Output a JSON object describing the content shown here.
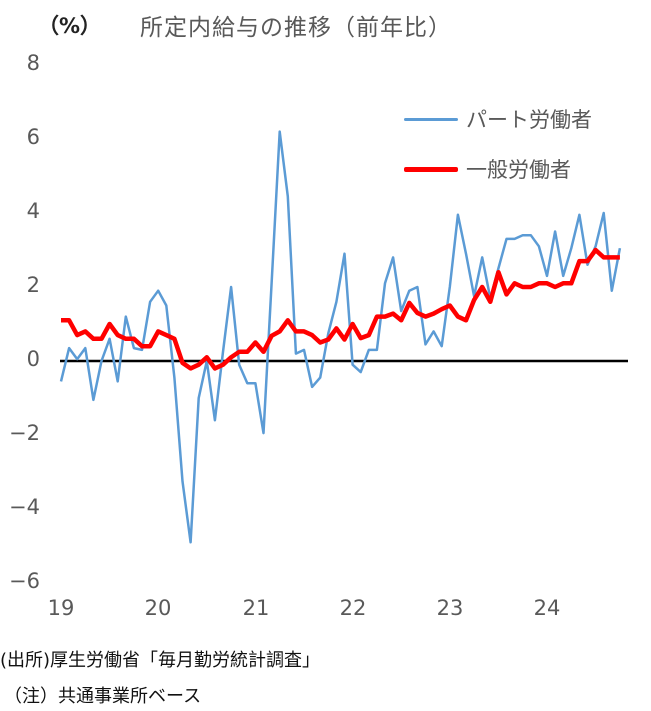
{
  "header": {
    "unit": "（%）",
    "title": "所定内給与の推移（前年比）"
  },
  "legend": {
    "items": [
      {
        "label": "パート労働者",
        "color": "#5b9bd5"
      },
      {
        "label": "一般労働者",
        "color": "#ff0000"
      }
    ]
  },
  "axes": {
    "y_ticks": [
      "8",
      "6",
      "4",
      "2",
      "0",
      "−2",
      "−4",
      "−6"
    ],
    "x_ticks": [
      "19",
      "20",
      "21",
      "22",
      "23",
      "24"
    ]
  },
  "footer": {
    "source": "(出所)厚生労働省「毎月勤労統計調査」",
    "note": "（注）共通事業所ベース"
  },
  "chart_data": {
    "type": "line",
    "title": "所定内給与の推移（前年比）",
    "xlabel": "",
    "ylabel": "（%）",
    "ylim": [
      -6,
      8
    ],
    "yticks": [
      8,
      6,
      4,
      2,
      0,
      -2,
      -4,
      -6
    ],
    "xtick_labels": [
      "19",
      "20",
      "21",
      "22",
      "23",
      "24"
    ],
    "x_start": "2019-01",
    "x_frequency": "monthly",
    "grid": false,
    "zero_line": true,
    "legend_position": "upper right",
    "series": [
      {
        "name": "パート労働者",
        "color": "#5b9bd5",
        "values": [
          -0.55,
          0.35,
          0.05,
          0.35,
          -1.05,
          0.0,
          0.6,
          -0.55,
          1.2,
          0.35,
          0.3,
          1.6,
          1.9,
          1.5,
          -0.45,
          -3.25,
          -4.9,
          -1.0,
          0.0,
          -1.6,
          0.25,
          2.0,
          -0.1,
          -0.6,
          -0.6,
          -1.95,
          2.1,
          6.2,
          4.45,
          0.2,
          0.3,
          -0.7,
          -0.45,
          0.75,
          1.6,
          2.9,
          -0.1,
          -0.3,
          0.3,
          0.3,
          2.1,
          2.8,
          1.35,
          1.9,
          2.0,
          0.45,
          0.8,
          0.4,
          2.0,
          3.95,
          2.9,
          1.75,
          2.8,
          1.7,
          2.5,
          3.3,
          3.3,
          3.4,
          3.4,
          3.1,
          2.3,
          3.5,
          2.3,
          3.05,
          3.95,
          2.6,
          3.1,
          4.0,
          1.9,
          3.05
        ]
      },
      {
        "name": "一般労働者",
        "color": "#ff0000",
        "values": [
          1.1,
          1.1,
          0.7,
          0.8,
          0.6,
          0.6,
          1.0,
          0.7,
          0.6,
          0.6,
          0.4,
          0.4,
          0.8,
          0.7,
          0.6,
          -0.05,
          -0.2,
          -0.1,
          0.1,
          -0.2,
          -0.1,
          0.1,
          0.25,
          0.25,
          0.5,
          0.25,
          0.68,
          0.8,
          1.1,
          0.8,
          0.8,
          0.7,
          0.5,
          0.58,
          0.88,
          0.58,
          1.0,
          0.62,
          0.7,
          1.2,
          1.2,
          1.28,
          1.1,
          1.57,
          1.3,
          1.2,
          1.28,
          1.4,
          1.5,
          1.2,
          1.1,
          1.65,
          2.0,
          1.6,
          2.4,
          1.8,
          2.1,
          2.0,
          2.0,
          2.1,
          2.1,
          2.0,
          2.1,
          2.1,
          2.7,
          2.7,
          3.0,
          2.8,
          2.8,
          2.8
        ]
      }
    ]
  }
}
